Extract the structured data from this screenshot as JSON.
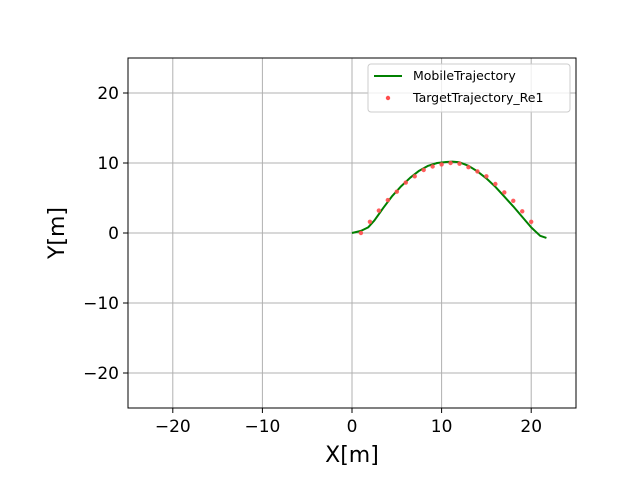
{
  "chart_data": {
    "type": "line",
    "xlabel": "X[m]",
    "ylabel": "Y[m]",
    "xlim": [
      -25,
      25
    ],
    "ylim": [
      -25,
      25
    ],
    "xticks": [
      -20,
      -10,
      0,
      10,
      20
    ],
    "yticks": [
      -20,
      -10,
      0,
      10,
      20
    ],
    "xtick_labels": [
      "−20",
      "−10",
      "0",
      "10",
      "20"
    ],
    "ytick_labels": [
      "−20",
      "−10",
      "0",
      "10",
      "20"
    ],
    "grid": true,
    "legend_position": "top-right",
    "series": [
      {
        "name": "MobileTrajectory",
        "kind": "line",
        "color": "#008000",
        "x": [
          0,
          1,
          1.8,
          2.5,
          3.5,
          4.5,
          5.5,
          6.5,
          7.5,
          8.5,
          9.5,
          10.5,
          11.2,
          12,
          13,
          14,
          15,
          16,
          17,
          18,
          19,
          20,
          21,
          21.7
        ],
        "y": [
          0,
          0.3,
          0.8,
          1.8,
          3.6,
          5.3,
          6.7,
          7.9,
          8.9,
          9.6,
          10.0,
          10.15,
          10.2,
          10.1,
          9.6,
          8.8,
          7.8,
          6.6,
          5.2,
          3.8,
          2.3,
          0.8,
          -0.4,
          -0.7
        ]
      },
      {
        "name": "TargetTrajectory_Re1",
        "kind": "scatter",
        "color": "#ff4d4d",
        "x": [
          1,
          2,
          3,
          4,
          5,
          6,
          7,
          8,
          9,
          10,
          11,
          12,
          13,
          14,
          15,
          16,
          17,
          18,
          19,
          20
        ],
        "y": [
          0.0,
          1.6,
          3.2,
          4.7,
          5.9,
          7.2,
          8.1,
          9.0,
          9.5,
          9.8,
          10.0,
          9.9,
          9.4,
          8.8,
          8.1,
          7.0,
          5.8,
          4.6,
          3.1,
          1.6
        ]
      }
    ]
  }
}
